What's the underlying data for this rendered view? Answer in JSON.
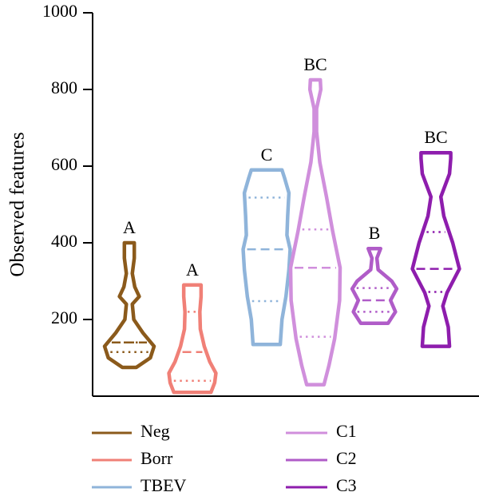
{
  "chart_data": {
    "type": "violin",
    "ylabel": "Observed features",
    "xlabel": "",
    "ylim": [
      0,
      1000
    ],
    "yticks": [
      200,
      400,
      600,
      800,
      1000
    ],
    "legend_position": "bottom",
    "series": [
      {
        "name": "Neg",
        "color": "#8B5A1B",
        "letter": "A",
        "min": 75,
        "q1": 115,
        "median": 140,
        "q3": 140,
        "max": 400,
        "profile": [
          [
            75,
            0.28
          ],
          [
            100,
            0.85
          ],
          [
            130,
            1.0
          ],
          [
            165,
            0.55
          ],
          [
            200,
            0.18
          ],
          [
            240,
            0.12
          ],
          [
            260,
            0.4
          ],
          [
            285,
            0.22
          ],
          [
            320,
            0.12
          ],
          [
            360,
            0.2
          ],
          [
            400,
            0.2
          ]
        ]
      },
      {
        "name": "Borr",
        "color": "#F08077",
        "letter": "A",
        "min": 10,
        "q1": 40,
        "median": 115,
        "q3": 220,
        "max": 290,
        "profile": [
          [
            10,
            0.75
          ],
          [
            35,
            0.9
          ],
          [
            60,
            0.95
          ],
          [
            90,
            0.7
          ],
          [
            130,
            0.48
          ],
          [
            175,
            0.32
          ],
          [
            220,
            0.3
          ],
          [
            260,
            0.35
          ],
          [
            290,
            0.35
          ]
        ]
      },
      {
        "name": "TBEV",
        "color": "#8FB4DA",
        "letter": "C",
        "min": 135,
        "q1": 248,
        "median": 383,
        "q3": 518,
        "max": 590,
        "profile": [
          [
            135,
            0.55
          ],
          [
            200,
            0.62
          ],
          [
            260,
            0.78
          ],
          [
            330,
            0.9
          ],
          [
            383,
            0.95
          ],
          [
            420,
            0.82
          ],
          [
            470,
            0.85
          ],
          [
            530,
            0.9
          ],
          [
            570,
            0.72
          ],
          [
            590,
            0.62
          ]
        ]
      },
      {
        "name": "C1",
        "color": "#D08FDC",
        "letter": "BC",
        "min": 30,
        "q1": 155,
        "median": 335,
        "q3": 435,
        "max": 825,
        "profile": [
          [
            30,
            0.35
          ],
          [
            80,
            0.55
          ],
          [
            150,
            0.78
          ],
          [
            250,
            0.98
          ],
          [
            335,
            1.0
          ],
          [
            430,
            0.7
          ],
          [
            520,
            0.45
          ],
          [
            610,
            0.18
          ],
          [
            690,
            0.05
          ],
          [
            750,
            0.05
          ],
          [
            800,
            0.22
          ],
          [
            825,
            0.2
          ]
        ]
      },
      {
        "name": "C2",
        "color": "#B05CC8",
        "letter": "B",
        "min": 190,
        "q1": 220,
        "median": 250,
        "q3": 282,
        "max": 385,
        "profile": [
          [
            190,
            0.55
          ],
          [
            220,
            0.85
          ],
          [
            250,
            0.65
          ],
          [
            280,
            0.9
          ],
          [
            300,
            0.7
          ],
          [
            330,
            0.15
          ],
          [
            360,
            0.1
          ],
          [
            385,
            0.25
          ]
        ]
      },
      {
        "name": "C3",
        "color": "#8E1DAD",
        "letter": "BC",
        "min": 130,
        "q1": 272,
        "median": 332,
        "q3": 428,
        "max": 635,
        "profile": [
          [
            130,
            0.55
          ],
          [
            180,
            0.5
          ],
          [
            235,
            0.28
          ],
          [
            270,
            0.45
          ],
          [
            332,
            0.95
          ],
          [
            400,
            0.68
          ],
          [
            470,
            0.32
          ],
          [
            520,
            0.2
          ],
          [
            580,
            0.55
          ],
          [
            620,
            0.6
          ],
          [
            635,
            0.6
          ]
        ]
      }
    ]
  }
}
